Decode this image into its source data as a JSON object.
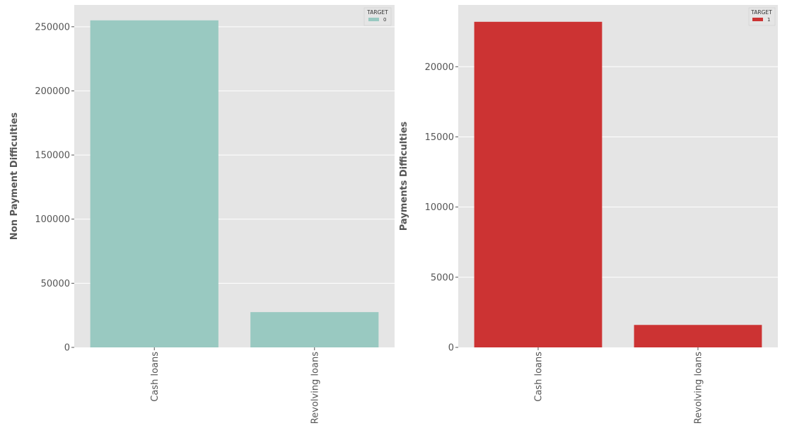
{
  "chart_data": [
    {
      "type": "bar",
      "categories": [
        "Cash loans",
        "Revolving loans"
      ],
      "series": [
        {
          "name": "0",
          "values": [
            255000,
            27500
          ]
        }
      ],
      "title": "",
      "xlabel": "",
      "ylabel": "Non Payment Difficulties",
      "ylim": [
        0,
        267000
      ],
      "yticks": [
        0,
        50000,
        100000,
        150000,
        200000,
        250000
      ],
      "ytick_labels": [
        "0",
        "50000",
        "100000",
        "150000",
        "200000",
        "250000"
      ],
      "legend": {
        "title": "TARGET",
        "placement": "top-right"
      },
      "grid": true,
      "bar_color": "#99c9c1"
    },
    {
      "type": "bar",
      "categories": [
        "Cash loans",
        "Revolving loans"
      ],
      "series": [
        {
          "name": "1",
          "values": [
            23200,
            1600
          ]
        }
      ],
      "title": "",
      "xlabel": "",
      "ylabel": "Payments Difficulties",
      "ylim": [
        0,
        24400
      ],
      "yticks": [
        0,
        5000,
        10000,
        15000,
        20000
      ],
      "ytick_labels": [
        "0",
        "5000",
        "10000",
        "15000",
        "20000"
      ],
      "legend": {
        "title": "TARGET",
        "placement": "top-right"
      },
      "grid": true,
      "bar_color": "#cc3333"
    }
  ],
  "colors": {
    "plot_background": "#e5e5e5",
    "grid": "#ffffff"
  }
}
